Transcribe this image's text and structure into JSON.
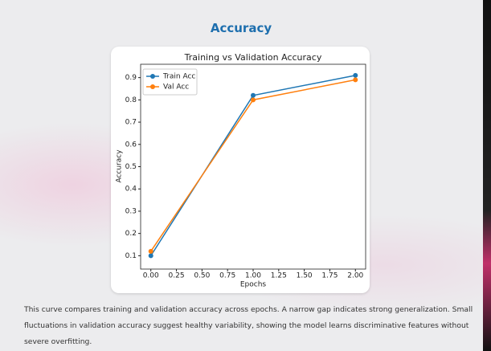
{
  "heading": "Accuracy",
  "chart_data": {
    "type": "line",
    "title": "Training vs Validation Accuracy",
    "x_label": "Epochs",
    "y_label": "Accuracy",
    "x": [
      0,
      1,
      2
    ],
    "series": [
      {
        "name": "Train Acc",
        "color": "#1f77b4",
        "values": [
          0.1,
          0.82,
          0.91
        ]
      },
      {
        "name": "Val Acc",
        "color": "#ff7f0e",
        "values": [
          0.12,
          0.8,
          0.89
        ]
      }
    ],
    "xlim": [
      -0.1,
      2.1
    ],
    "xticks": [
      {
        "value": 0,
        "label": "0.00"
      },
      {
        "value": 0.25,
        "label": "0.25"
      },
      {
        "value": 0.5,
        "label": "0.50"
      },
      {
        "value": 0.75,
        "label": "0.75"
      },
      {
        "value": 1,
        "label": "1.00"
      },
      {
        "value": 1.25,
        "label": "1.25"
      },
      {
        "value": 1.5,
        "label": "1.50"
      },
      {
        "value": 1.75,
        "label": "1.75"
      },
      {
        "value": 2,
        "label": "2.00"
      }
    ],
    "ylim": [
      0.04,
      0.96
    ],
    "yticks": [
      0.1,
      0.2,
      0.3,
      0.4,
      0.5,
      0.6,
      0.7,
      0.8,
      0.9
    ],
    "legend": "upper left"
  },
  "caption": "This curve compares training and validation accuracy across epochs. A narrow gap indicates strong generalization. Small fluctuations in validation accuracy suggest healthy variability, showing the model learns discriminative features without severe overfitting."
}
